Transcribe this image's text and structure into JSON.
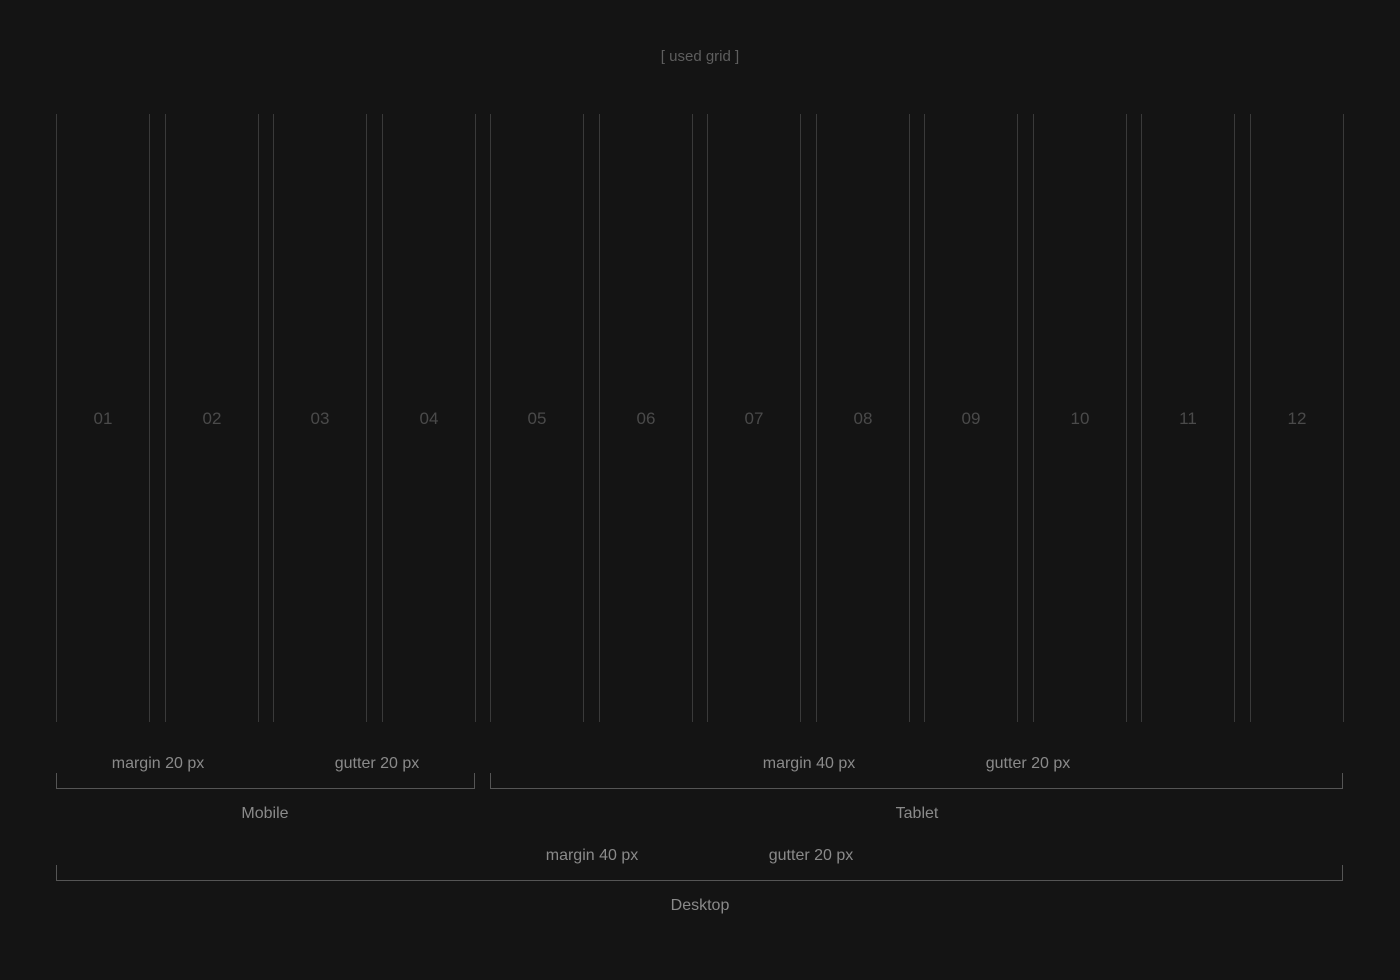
{
  "caption": "[ used grid ]",
  "columns": [
    "01",
    "02",
    "03",
    "04",
    "05",
    "06",
    "07",
    "08",
    "09",
    "10",
    "11",
    "12"
  ],
  "groups": {
    "mobile": {
      "name": "Mobile",
      "margin": "margin 20 px",
      "gutter": "gutter 20 px"
    },
    "tablet": {
      "name": "Tablet",
      "margin": "margin 40 px",
      "gutter": "gutter 20 px"
    },
    "desktop": {
      "name": "Desktop",
      "margin": "margin 40 px",
      "gutter": "gutter 20 px"
    }
  },
  "colors": {
    "background": "#141414",
    "grid_line": "#3a3a3a",
    "bracket_line": "#555555",
    "text": "#8a8a8a",
    "column_number": "#4a4a4a"
  }
}
